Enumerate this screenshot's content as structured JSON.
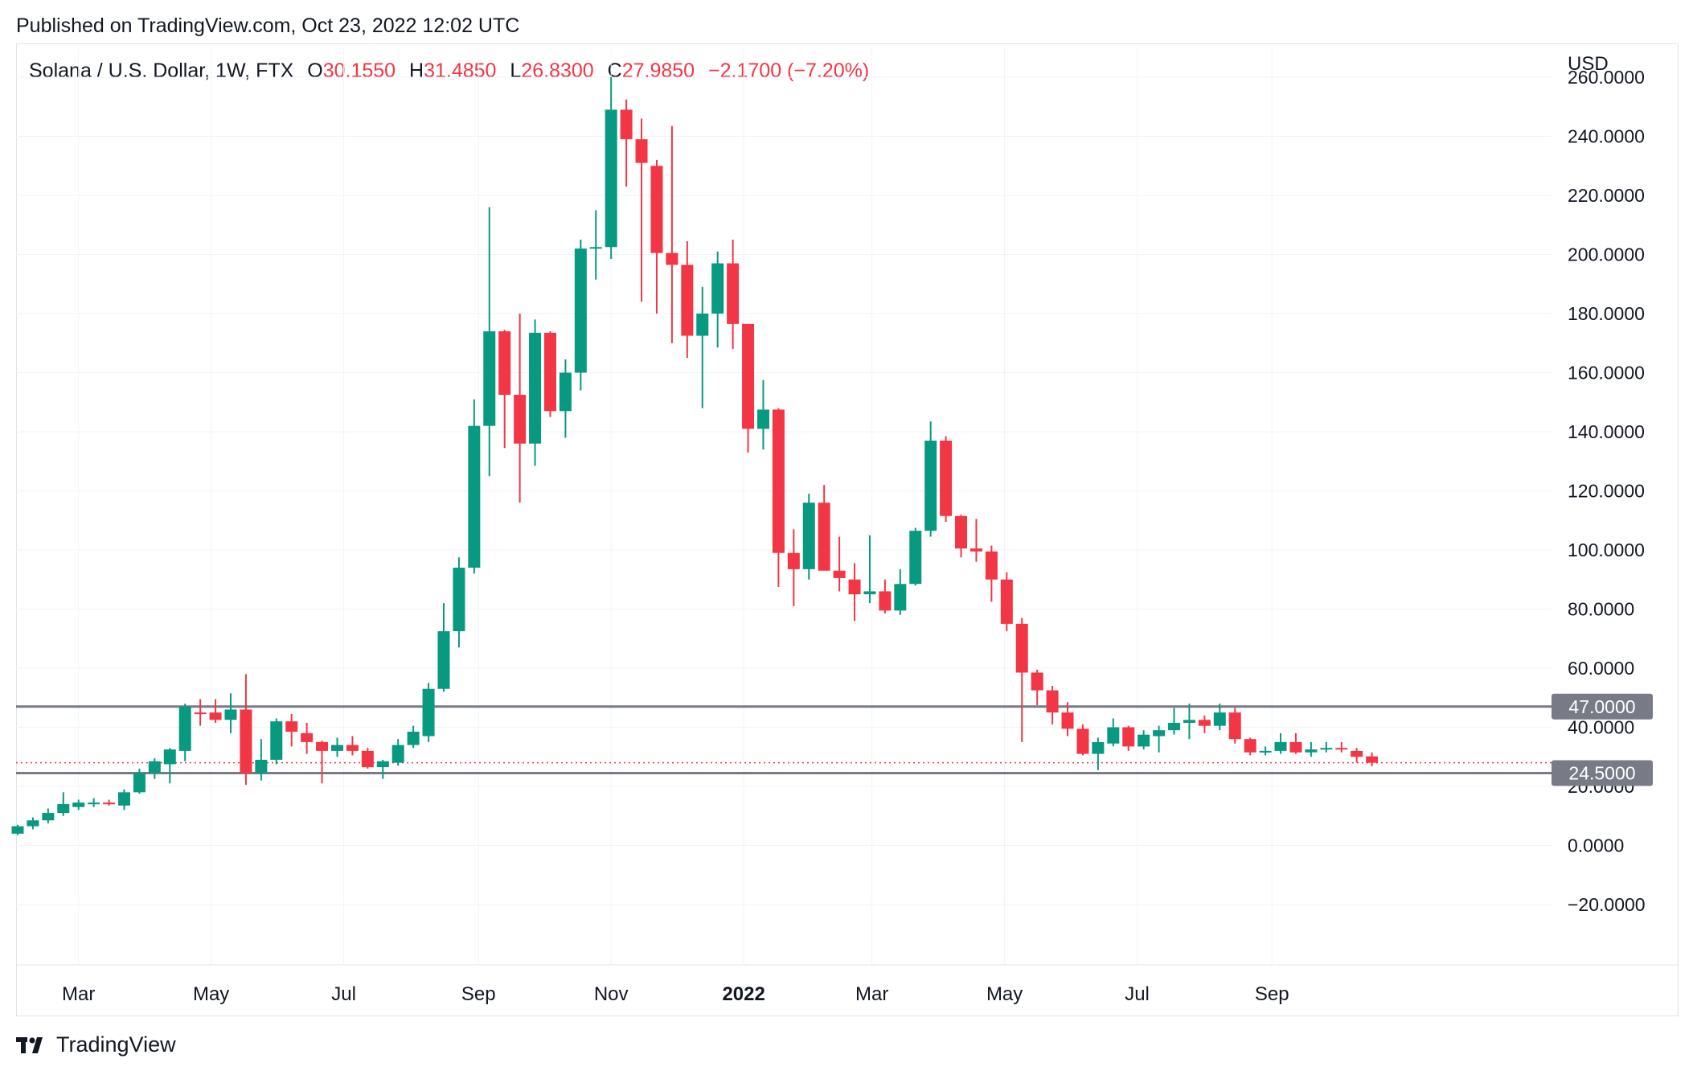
{
  "header": {
    "published": "Published on TradingView.com, Oct 23, 2022 12:02 UTC"
  },
  "legend": {
    "symbol": "Solana / U.S. Dollar, 1W, FTX",
    "open_label": "O",
    "open": "30.1550",
    "high_label": "H",
    "high": "31.4850",
    "low_label": "L",
    "low": "26.8300",
    "close_label": "C",
    "close": "27.9850",
    "change": "−2.1700 (−7.20%)"
  },
  "footer": {
    "brand": "TradingView",
    "logo_icon": "tradingview-logo-icon"
  },
  "colors": {
    "up": "#089981",
    "down": "#f23645",
    "grid": "#f0f3fa",
    "level_line": "#787b86",
    "level_label_bg": "#787b86",
    "price_line": "#f23645"
  },
  "chart_data": {
    "type": "candlestick",
    "currency": "USD",
    "ylim": [
      -20,
      280
    ],
    "y_ticks": [
      "−20.0000",
      "0.0000",
      "20.0000",
      "40.0000",
      "60.0000",
      "80.0000",
      "100.0000",
      "120.0000",
      "140.0000",
      "160.0000",
      "180.0000",
      "200.0000",
      "220.0000",
      "240.0000",
      "260.0000"
    ],
    "y_tick_values": [
      -20,
      0,
      20,
      40,
      60,
      80,
      100,
      120,
      140,
      160,
      180,
      200,
      220,
      240,
      260
    ],
    "x_labels": [
      {
        "label": "Mar",
        "date": "2021-03-01",
        "bold": false
      },
      {
        "label": "May",
        "date": "2021-05-01",
        "bold": false
      },
      {
        "label": "Jul",
        "date": "2021-07-01",
        "bold": false
      },
      {
        "label": "Sep",
        "date": "2021-09-01",
        "bold": false
      },
      {
        "label": "Nov",
        "date": "2021-11-01",
        "bold": false
      },
      {
        "label": "2022",
        "date": "2022-01-01",
        "bold": true
      },
      {
        "label": "Mar",
        "date": "2022-03-01",
        "bold": false
      },
      {
        "label": "May",
        "date": "2022-05-01",
        "bold": false
      },
      {
        "label": "Jul",
        "date": "2022-07-01",
        "bold": false
      },
      {
        "label": "Sep",
        "date": "2022-09-01",
        "bold": false
      }
    ],
    "horizontal_levels": [
      {
        "value": 47.0,
        "label": "47.0000"
      },
      {
        "value": 24.5,
        "label": "24.5000"
      }
    ],
    "last_price": 27.985,
    "candles": [
      {
        "date": "2021-02-01",
        "o": 4.0,
        "h": 7.0,
        "l": 3.5,
        "c": 6.5
      },
      {
        "date": "2021-02-08",
        "o": 6.5,
        "h": 9.5,
        "l": 5.5,
        "c": 8.5
      },
      {
        "date": "2021-02-15",
        "o": 8.5,
        "h": 12.5,
        "l": 7.5,
        "c": 11.0
      },
      {
        "date": "2021-02-22",
        "o": 11.0,
        "h": 18.0,
        "l": 10.0,
        "c": 14.0
      },
      {
        "date": "2021-03-01",
        "o": 13.0,
        "h": 15.5,
        "l": 12.0,
        "c": 14.5
      },
      {
        "date": "2021-03-08",
        "o": 14.0,
        "h": 16.0,
        "l": 13.0,
        "c": 14.5
      },
      {
        "date": "2021-03-15",
        "o": 14.5,
        "h": 15.5,
        "l": 13.5,
        "c": 14.0
      },
      {
        "date": "2021-03-22",
        "o": 13.5,
        "h": 19.0,
        "l": 12.0,
        "c": 18.0
      },
      {
        "date": "2021-03-29",
        "o": 18.0,
        "h": 26.0,
        "l": 17.5,
        "c": 24.5
      },
      {
        "date": "2021-04-05",
        "o": 24.5,
        "h": 29.5,
        "l": 22.5,
        "c": 28.5
      },
      {
        "date": "2021-04-12",
        "o": 27.5,
        "h": 33.0,
        "l": 21.0,
        "c": 32.5
      },
      {
        "date": "2021-04-19",
        "o": 32.0,
        "h": 48.0,
        "l": 28.5,
        "c": 47.0
      },
      {
        "date": "2021-04-26",
        "o": 45.0,
        "h": 49.5,
        "l": 40.5,
        "c": 44.5
      },
      {
        "date": "2021-05-03",
        "o": 45.0,
        "h": 49.5,
        "l": 41.5,
        "c": 42.5
      },
      {
        "date": "2021-05-10",
        "o": 42.5,
        "h": 51.5,
        "l": 38.0,
        "c": 46.0
      },
      {
        "date": "2021-05-17",
        "o": 46.0,
        "h": 58.0,
        "l": 20.5,
        "c": 24.5
      },
      {
        "date": "2021-05-24",
        "o": 24.5,
        "h": 36.0,
        "l": 22.0,
        "c": 29.0
      },
      {
        "date": "2021-05-31",
        "o": 29.0,
        "h": 43.0,
        "l": 27.5,
        "c": 42.0
      },
      {
        "date": "2021-06-07",
        "o": 42.0,
        "h": 44.5,
        "l": 33.5,
        "c": 38.5
      },
      {
        "date": "2021-06-14",
        "o": 38.0,
        "h": 41.5,
        "l": 31.0,
        "c": 35.0
      },
      {
        "date": "2021-06-21",
        "o": 35.0,
        "h": 35.5,
        "l": 21.0,
        "c": 32.0
      },
      {
        "date": "2021-06-28",
        "o": 32.0,
        "h": 36.5,
        "l": 30.0,
        "c": 34.0
      },
      {
        "date": "2021-07-05",
        "o": 34.0,
        "h": 37.0,
        "l": 30.5,
        "c": 32.0
      },
      {
        "date": "2021-07-12",
        "o": 32.0,
        "h": 33.0,
        "l": 26.0,
        "c": 26.5
      },
      {
        "date": "2021-07-19",
        "o": 26.5,
        "h": 29.0,
        "l": 22.5,
        "c": 28.5
      },
      {
        "date": "2021-07-26",
        "o": 28.0,
        "h": 36.0,
        "l": 27.0,
        "c": 34.0
      },
      {
        "date": "2021-08-02",
        "o": 34.0,
        "h": 40.5,
        "l": 33.0,
        "c": 38.5
      },
      {
        "date": "2021-08-09",
        "o": 37.0,
        "h": 55.0,
        "l": 35.0,
        "c": 53.0
      },
      {
        "date": "2021-08-16",
        "o": 53.0,
        "h": 82.0,
        "l": 52.0,
        "c": 72.5
      },
      {
        "date": "2021-08-23",
        "o": 72.5,
        "h": 97.5,
        "l": 67.0,
        "c": 94.0
      },
      {
        "date": "2021-08-30",
        "o": 94.0,
        "h": 151.0,
        "l": 92.0,
        "c": 142.0
      },
      {
        "date": "2021-09-06",
        "o": 142.0,
        "h": 216.0,
        "l": 125.0,
        "c": 174.0
      },
      {
        "date": "2021-09-13",
        "o": 174.0,
        "h": 174.5,
        "l": 134.5,
        "c": 152.5
      },
      {
        "date": "2021-09-20",
        "o": 152.5,
        "h": 180.0,
        "l": 116.0,
        "c": 136.0
      },
      {
        "date": "2021-09-27",
        "o": 136.0,
        "h": 178.0,
        "l": 128.5,
        "c": 173.5
      },
      {
        "date": "2021-10-04",
        "o": 173.5,
        "h": 174.0,
        "l": 145.0,
        "c": 147.0
      },
      {
        "date": "2021-10-11",
        "o": 147.0,
        "h": 164.5,
        "l": 138.0,
        "c": 160.0
      },
      {
        "date": "2021-10-18",
        "o": 160.0,
        "h": 205.0,
        "l": 154.0,
        "c": 202.0
      },
      {
        "date": "2021-10-25",
        "o": 202.0,
        "h": 215.0,
        "l": 191.5,
        "c": 202.5
      },
      {
        "date": "2021-11-01",
        "o": 202.5,
        "h": 260.0,
        "l": 198.5,
        "c": 249.0
      },
      {
        "date": "2021-11-08",
        "o": 249.0,
        "h": 252.5,
        "l": 223.0,
        "c": 239.0
      },
      {
        "date": "2021-11-15",
        "o": 239.0,
        "h": 246.0,
        "l": 184.0,
        "c": 231.0
      },
      {
        "date": "2021-11-22",
        "o": 230.0,
        "h": 232.0,
        "l": 180.0,
        "c": 200.5
      },
      {
        "date": "2021-11-29",
        "o": 200.5,
        "h": 243.5,
        "l": 170.0,
        "c": 196.5
      },
      {
        "date": "2021-12-06",
        "o": 196.5,
        "h": 204.5,
        "l": 165.0,
        "c": 172.5
      },
      {
        "date": "2021-12-13",
        "o": 172.5,
        "h": 189.0,
        "l": 148.0,
        "c": 180.0
      },
      {
        "date": "2021-12-20",
        "o": 180.0,
        "h": 201.0,
        "l": 168.5,
        "c": 197.0
      },
      {
        "date": "2021-12-27",
        "o": 197.0,
        "h": 205.0,
        "l": 168.0,
        "c": 176.5
      },
      {
        "date": "2022-01-03",
        "o": 176.5,
        "h": 176.5,
        "l": 133.0,
        "c": 141.0
      },
      {
        "date": "2022-01-10",
        "o": 141.0,
        "h": 157.5,
        "l": 134.0,
        "c": 147.5
      },
      {
        "date": "2022-01-17",
        "o": 147.5,
        "h": 148.0,
        "l": 87.5,
        "c": 99.0
      },
      {
        "date": "2022-01-24",
        "o": 99.0,
        "h": 107.0,
        "l": 81.0,
        "c": 93.5
      },
      {
        "date": "2022-01-31",
        "o": 93.5,
        "h": 119.0,
        "l": 90.0,
        "c": 116.0
      },
      {
        "date": "2022-02-07",
        "o": 116.0,
        "h": 122.0,
        "l": 93.0,
        "c": 93.0
      },
      {
        "date": "2022-02-14",
        "o": 93.0,
        "h": 104.5,
        "l": 86.0,
        "c": 90.5
      },
      {
        "date": "2022-02-21",
        "o": 90.0,
        "h": 95.5,
        "l": 76.0,
        "c": 85.0
      },
      {
        "date": "2022-02-28",
        "o": 85.0,
        "h": 105.0,
        "l": 82.0,
        "c": 86.0
      },
      {
        "date": "2022-03-07",
        "o": 86.0,
        "h": 90.0,
        "l": 78.5,
        "c": 79.5
      },
      {
        "date": "2022-03-14",
        "o": 79.5,
        "h": 93.5,
        "l": 78.0,
        "c": 88.5
      },
      {
        "date": "2022-03-21",
        "o": 88.5,
        "h": 107.5,
        "l": 88.0,
        "c": 106.5
      },
      {
        "date": "2022-03-28",
        "o": 106.5,
        "h": 143.5,
        "l": 104.5,
        "c": 137.0
      },
      {
        "date": "2022-04-04",
        "o": 137.0,
        "h": 138.5,
        "l": 109.5,
        "c": 111.5
      },
      {
        "date": "2022-04-11",
        "o": 111.5,
        "h": 112.0,
        "l": 97.5,
        "c": 100.5
      },
      {
        "date": "2022-04-18",
        "o": 100.5,
        "h": 110.5,
        "l": 96.0,
        "c": 99.5
      },
      {
        "date": "2022-04-25",
        "o": 99.5,
        "h": 101.5,
        "l": 82.5,
        "c": 90.0
      },
      {
        "date": "2022-05-02",
        "o": 90.0,
        "h": 92.5,
        "l": 72.5,
        "c": 75.0
      },
      {
        "date": "2022-05-09",
        "o": 75.0,
        "h": 77.0,
        "l": 35.0,
        "c": 58.5
      },
      {
        "date": "2022-05-16",
        "o": 58.5,
        "h": 59.5,
        "l": 47.5,
        "c": 52.5
      },
      {
        "date": "2022-05-23",
        "o": 52.5,
        "h": 54.0,
        "l": 41.0,
        "c": 45.0
      },
      {
        "date": "2022-05-30",
        "o": 45.0,
        "h": 48.5,
        "l": 37.0,
        "c": 39.5
      },
      {
        "date": "2022-06-06",
        "o": 39.5,
        "h": 41.0,
        "l": 30.5,
        "c": 31.0
      },
      {
        "date": "2022-06-13",
        "o": 31.0,
        "h": 36.5,
        "l": 25.5,
        "c": 35.0
      },
      {
        "date": "2022-06-20",
        "o": 34.5,
        "h": 43.0,
        "l": 33.5,
        "c": 40.0
      },
      {
        "date": "2022-06-27",
        "o": 40.0,
        "h": 40.5,
        "l": 32.0,
        "c": 33.5
      },
      {
        "date": "2022-07-04",
        "o": 33.5,
        "h": 39.0,
        "l": 32.5,
        "c": 37.5
      },
      {
        "date": "2022-07-11",
        "o": 37.0,
        "h": 40.5,
        "l": 31.5,
        "c": 39.0
      },
      {
        "date": "2022-07-18",
        "o": 39.0,
        "h": 46.5,
        "l": 37.5,
        "c": 41.5
      },
      {
        "date": "2022-07-25",
        "o": 41.5,
        "h": 48.0,
        "l": 36.0,
        "c": 42.5
      },
      {
        "date": "2022-08-01",
        "o": 42.5,
        "h": 44.0,
        "l": 38.0,
        "c": 40.5
      },
      {
        "date": "2022-08-08",
        "o": 40.5,
        "h": 48.0,
        "l": 39.0,
        "c": 45.0
      },
      {
        "date": "2022-08-15",
        "o": 45.0,
        "h": 46.5,
        "l": 34.5,
        "c": 36.0
      },
      {
        "date": "2022-08-22",
        "o": 36.0,
        "h": 36.5,
        "l": 30.5,
        "c": 31.5
      },
      {
        "date": "2022-08-29",
        "o": 31.5,
        "h": 33.5,
        "l": 30.5,
        "c": 32.0
      },
      {
        "date": "2022-09-05",
        "o": 32.0,
        "h": 38.0,
        "l": 31.0,
        "c": 35.0
      },
      {
        "date": "2022-09-12",
        "o": 35.0,
        "h": 38.0,
        "l": 31.0,
        "c": 31.5
      },
      {
        "date": "2022-09-19",
        "o": 31.5,
        "h": 35.0,
        "l": 30.0,
        "c": 32.5
      },
      {
        "date": "2022-09-26",
        "o": 32.5,
        "h": 35.0,
        "l": 31.5,
        "c": 33.0
      },
      {
        "date": "2022-10-03",
        "o": 33.0,
        "h": 35.0,
        "l": 31.5,
        "c": 32.5
      },
      {
        "date": "2022-10-10",
        "o": 32.0,
        "h": 33.0,
        "l": 28.0,
        "c": 30.0
      },
      {
        "date": "2022-10-17",
        "o": 30.155,
        "h": 31.485,
        "l": 26.83,
        "c": 27.985
      }
    ]
  }
}
